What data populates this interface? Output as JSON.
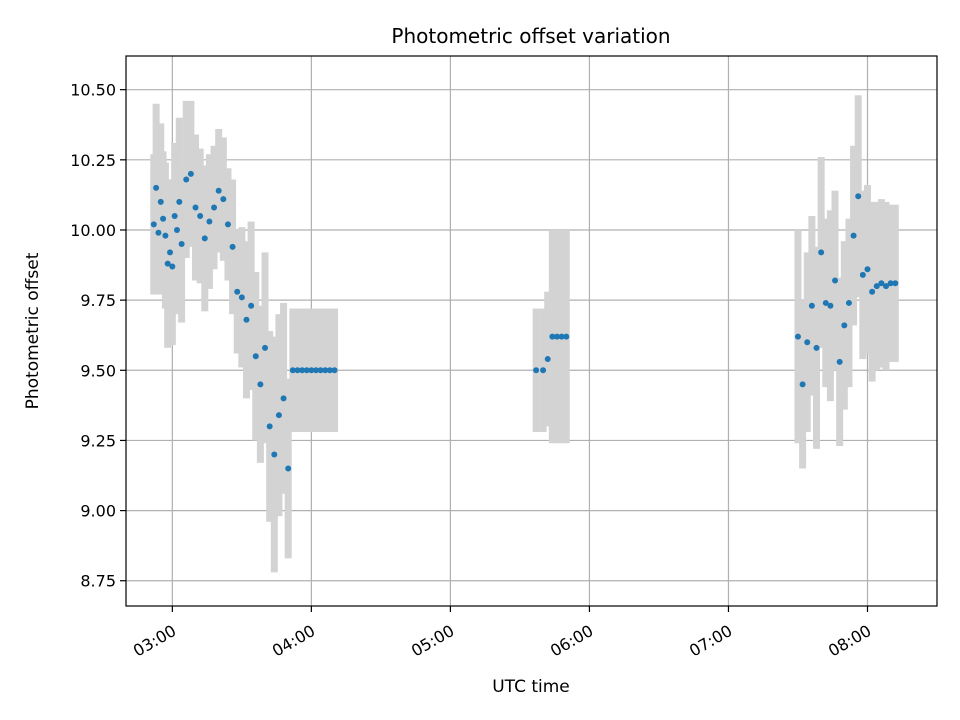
{
  "chart_data": {
    "type": "scatter",
    "title": "Photometric offset variation",
    "xlabel": "UTC time",
    "ylabel": "Photometric offset",
    "xlim": [
      "02:40",
      "08:30"
    ],
    "ylim": [
      8.66,
      10.62
    ],
    "xticks": [
      "03:00",
      "04:00",
      "05:00",
      "06:00",
      "07:00",
      "08:00"
    ],
    "yticks": [
      "8.75",
      "9.00",
      "9.25",
      "9.50",
      "9.75",
      "10.00",
      "10.25",
      "10.50"
    ],
    "grid": true,
    "colors": {
      "points": "#1f77b4",
      "errorbars": "#d3d3d3",
      "grid": "#b0b0b0"
    },
    "series": [
      {
        "x": [
          "02:52",
          "02:53",
          "02:54",
          "02:55",
          "02:56",
          "02:57",
          "02:58",
          "02:59",
          "03:00",
          "03:01",
          "03:02",
          "03:03",
          "03:04",
          "03:06",
          "03:08",
          "03:10",
          "03:12",
          "03:14",
          "03:16",
          "03:18",
          "03:20",
          "03:22",
          "03:24",
          "03:26",
          "03:28",
          "03:30",
          "03:32",
          "03:34",
          "03:36",
          "03:38",
          "03:40",
          "03:42",
          "03:44",
          "03:46",
          "03:48",
          "03:50",
          "03:52",
          "03:54",
          "03:56",
          "03:58",
          "04:00",
          "04:02",
          "04:04",
          "04:06",
          "04:08",
          "04:10",
          "05:37",
          "05:40",
          "05:42",
          "05:44",
          "05:46",
          "05:48",
          "05:50",
          "07:30",
          "07:32",
          "07:34",
          "07:36",
          "07:38",
          "07:40",
          "07:42",
          "07:44",
          "07:46",
          "07:48",
          "07:50",
          "07:52",
          "07:54",
          "07:56",
          "07:58",
          "08:00",
          "08:02",
          "08:04",
          "08:06",
          "08:08",
          "08:10",
          "08:12"
        ],
        "y": [
          10.02,
          10.15,
          9.99,
          10.1,
          10.04,
          9.98,
          9.88,
          9.92,
          9.87,
          10.05,
          10.0,
          10.1,
          9.95,
          10.18,
          10.2,
          10.08,
          10.05,
          9.97,
          10.03,
          10.08,
          10.14,
          10.11,
          10.02,
          9.94,
          9.78,
          9.76,
          9.68,
          9.73,
          9.55,
          9.45,
          9.58,
          9.3,
          9.2,
          9.34,
          9.4,
          9.15,
          9.5,
          9.5,
          9.5,
          9.5,
          9.5,
          9.5,
          9.5,
          9.5,
          9.5,
          9.5,
          9.5,
          9.5,
          9.54,
          9.62,
          9.62,
          9.62,
          9.62,
          9.62,
          9.45,
          9.6,
          9.73,
          9.58,
          9.92,
          9.74,
          9.73,
          9.82,
          9.53,
          9.66,
          9.74,
          9.98,
          10.12,
          9.84,
          9.86,
          9.78,
          9.8,
          9.81,
          9.8,
          9.81,
          9.81
        ],
        "yerr": [
          0.25,
          0.3,
          0.22,
          0.28,
          0.24,
          0.26,
          0.3,
          0.26,
          0.28,
          0.26,
          0.3,
          0.3,
          0.28,
          0.28,
          0.26,
          0.26,
          0.24,
          0.26,
          0.24,
          0.22,
          0.22,
          0.22,
          0.2,
          0.24,
          0.22,
          0.25,
          0.28,
          0.3,
          0.3,
          0.28,
          0.34,
          0.34,
          0.42,
          0.36,
          0.34,
          0.32,
          0.22,
          0.22,
          0.22,
          0.22,
          0.22,
          0.22,
          0.22,
          0.22,
          0.22,
          0.22,
          0.22,
          0.22,
          0.24,
          0.38,
          0.38,
          0.38,
          0.38,
          0.38,
          0.3,
          0.32,
          0.32,
          0.36,
          0.34,
          0.3,
          0.34,
          0.32,
          0.3,
          0.3,
          0.3,
          0.32,
          0.36,
          0.3,
          0.3,
          0.32,
          0.3,
          0.3,
          0.3,
          0.28,
          0.28
        ]
      }
    ]
  }
}
